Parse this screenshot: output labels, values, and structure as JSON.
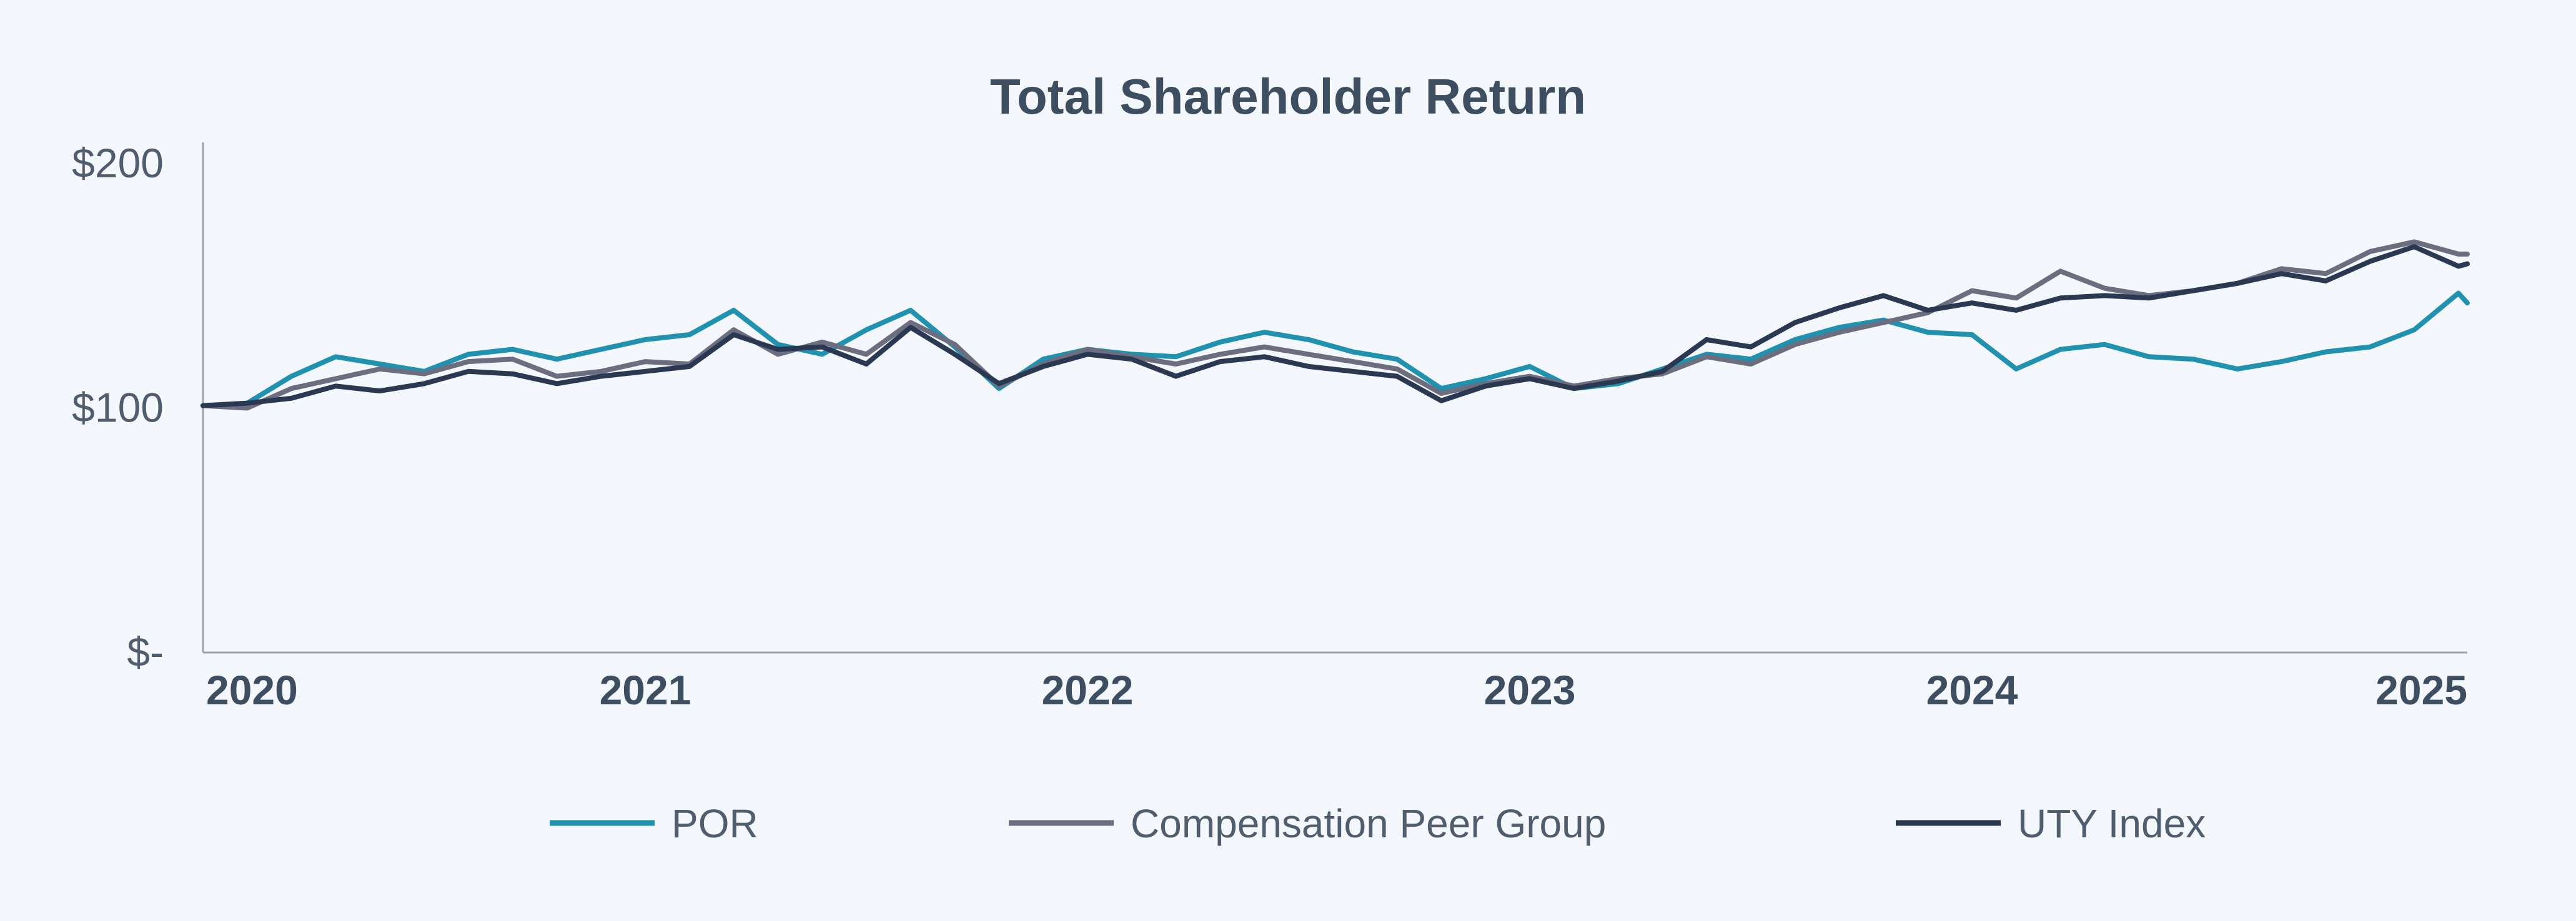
{
  "chart_data": {
    "type": "line",
    "title": "Total Shareholder Return",
    "xlabel": "",
    "ylabel": "",
    "x_range": [
      2020.0,
      2025.12
    ],
    "ylim": [
      0,
      210
    ],
    "y_ticks": [
      {
        "value": 200,
        "label": "$200"
      },
      {
        "value": 100,
        "label": "$100"
      },
      {
        "value": 0,
        "label": "$-"
      }
    ],
    "x_ticks": [
      {
        "value": 2020,
        "label": "2020"
      },
      {
        "value": 2021,
        "label": "2021"
      },
      {
        "value": 2022,
        "label": "2022"
      },
      {
        "value": 2023,
        "label": "2023"
      },
      {
        "value": 2024,
        "label": "2024"
      },
      {
        "value": 2025,
        "label": "2025"
      }
    ],
    "grid": false,
    "legend_position": "bottom",
    "x": [
      2020.0,
      2020.1,
      2020.2,
      2020.3,
      2020.4,
      2020.5,
      2020.6,
      2020.7,
      2020.8,
      2020.9,
      2021.0,
      2021.1,
      2021.2,
      2021.3,
      2021.4,
      2021.5,
      2021.6,
      2021.7,
      2021.8,
      2021.9,
      2022.0,
      2022.1,
      2022.2,
      2022.3,
      2022.4,
      2022.5,
      2022.6,
      2022.7,
      2022.8,
      2022.9,
      2023.0,
      2023.1,
      2023.2,
      2023.3,
      2023.4,
      2023.5,
      2023.6,
      2023.7,
      2023.8,
      2023.9,
      2024.0,
      2024.1,
      2024.2,
      2024.3,
      2024.4,
      2024.5,
      2024.6,
      2024.7,
      2024.8,
      2024.9,
      2025.0,
      2025.1,
      2025.12
    ],
    "series": [
      {
        "name": "POR",
        "color": "#2091ae",
        "values": [
          101,
          102,
          113,
          121,
          118,
          115,
          122,
          124,
          120,
          124,
          128,
          130,
          140,
          126,
          122,
          132,
          140,
          125,
          108,
          120,
          124,
          122,
          121,
          127,
          131,
          128,
          123,
          120,
          108,
          112,
          117,
          108,
          110,
          116,
          122,
          120,
          128,
          133,
          136,
          131,
          130,
          116,
          124,
          126,
          121,
          120,
          116,
          119,
          123,
          125,
          132,
          147,
          143
        ]
      },
      {
        "name": "Compensation Peer Group",
        "color": "#6c6e80",
        "values": [
          101,
          100,
          108,
          112,
          116,
          114,
          119,
          120,
          113,
          115,
          119,
          118,
          132,
          122,
          127,
          122,
          135,
          126,
          109,
          118,
          124,
          121,
          118,
          122,
          125,
          122,
          119,
          116,
          106,
          110,
          113,
          109,
          112,
          114,
          121,
          118,
          126,
          131,
          135,
          139,
          148,
          145,
          156,
          149,
          146,
          148,
          151,
          157,
          155,
          164,
          168,
          163,
          163
        ]
      },
      {
        "name": "UTY Index",
        "color": "#2a3851",
        "values": [
          101,
          102,
          104,
          109,
          107,
          110,
          115,
          114,
          110,
          113,
          115,
          117,
          130,
          124,
          125,
          118,
          133,
          122,
          110,
          117,
          122,
          120,
          113,
          119,
          121,
          117,
          115,
          113,
          103,
          109,
          112,
          108,
          111,
          115,
          128,
          125,
          135,
          141,
          146,
          140,
          143,
          140,
          145,
          146,
          145,
          148,
          151,
          155,
          152,
          160,
          166,
          158,
          159
        ]
      }
    ]
  }
}
